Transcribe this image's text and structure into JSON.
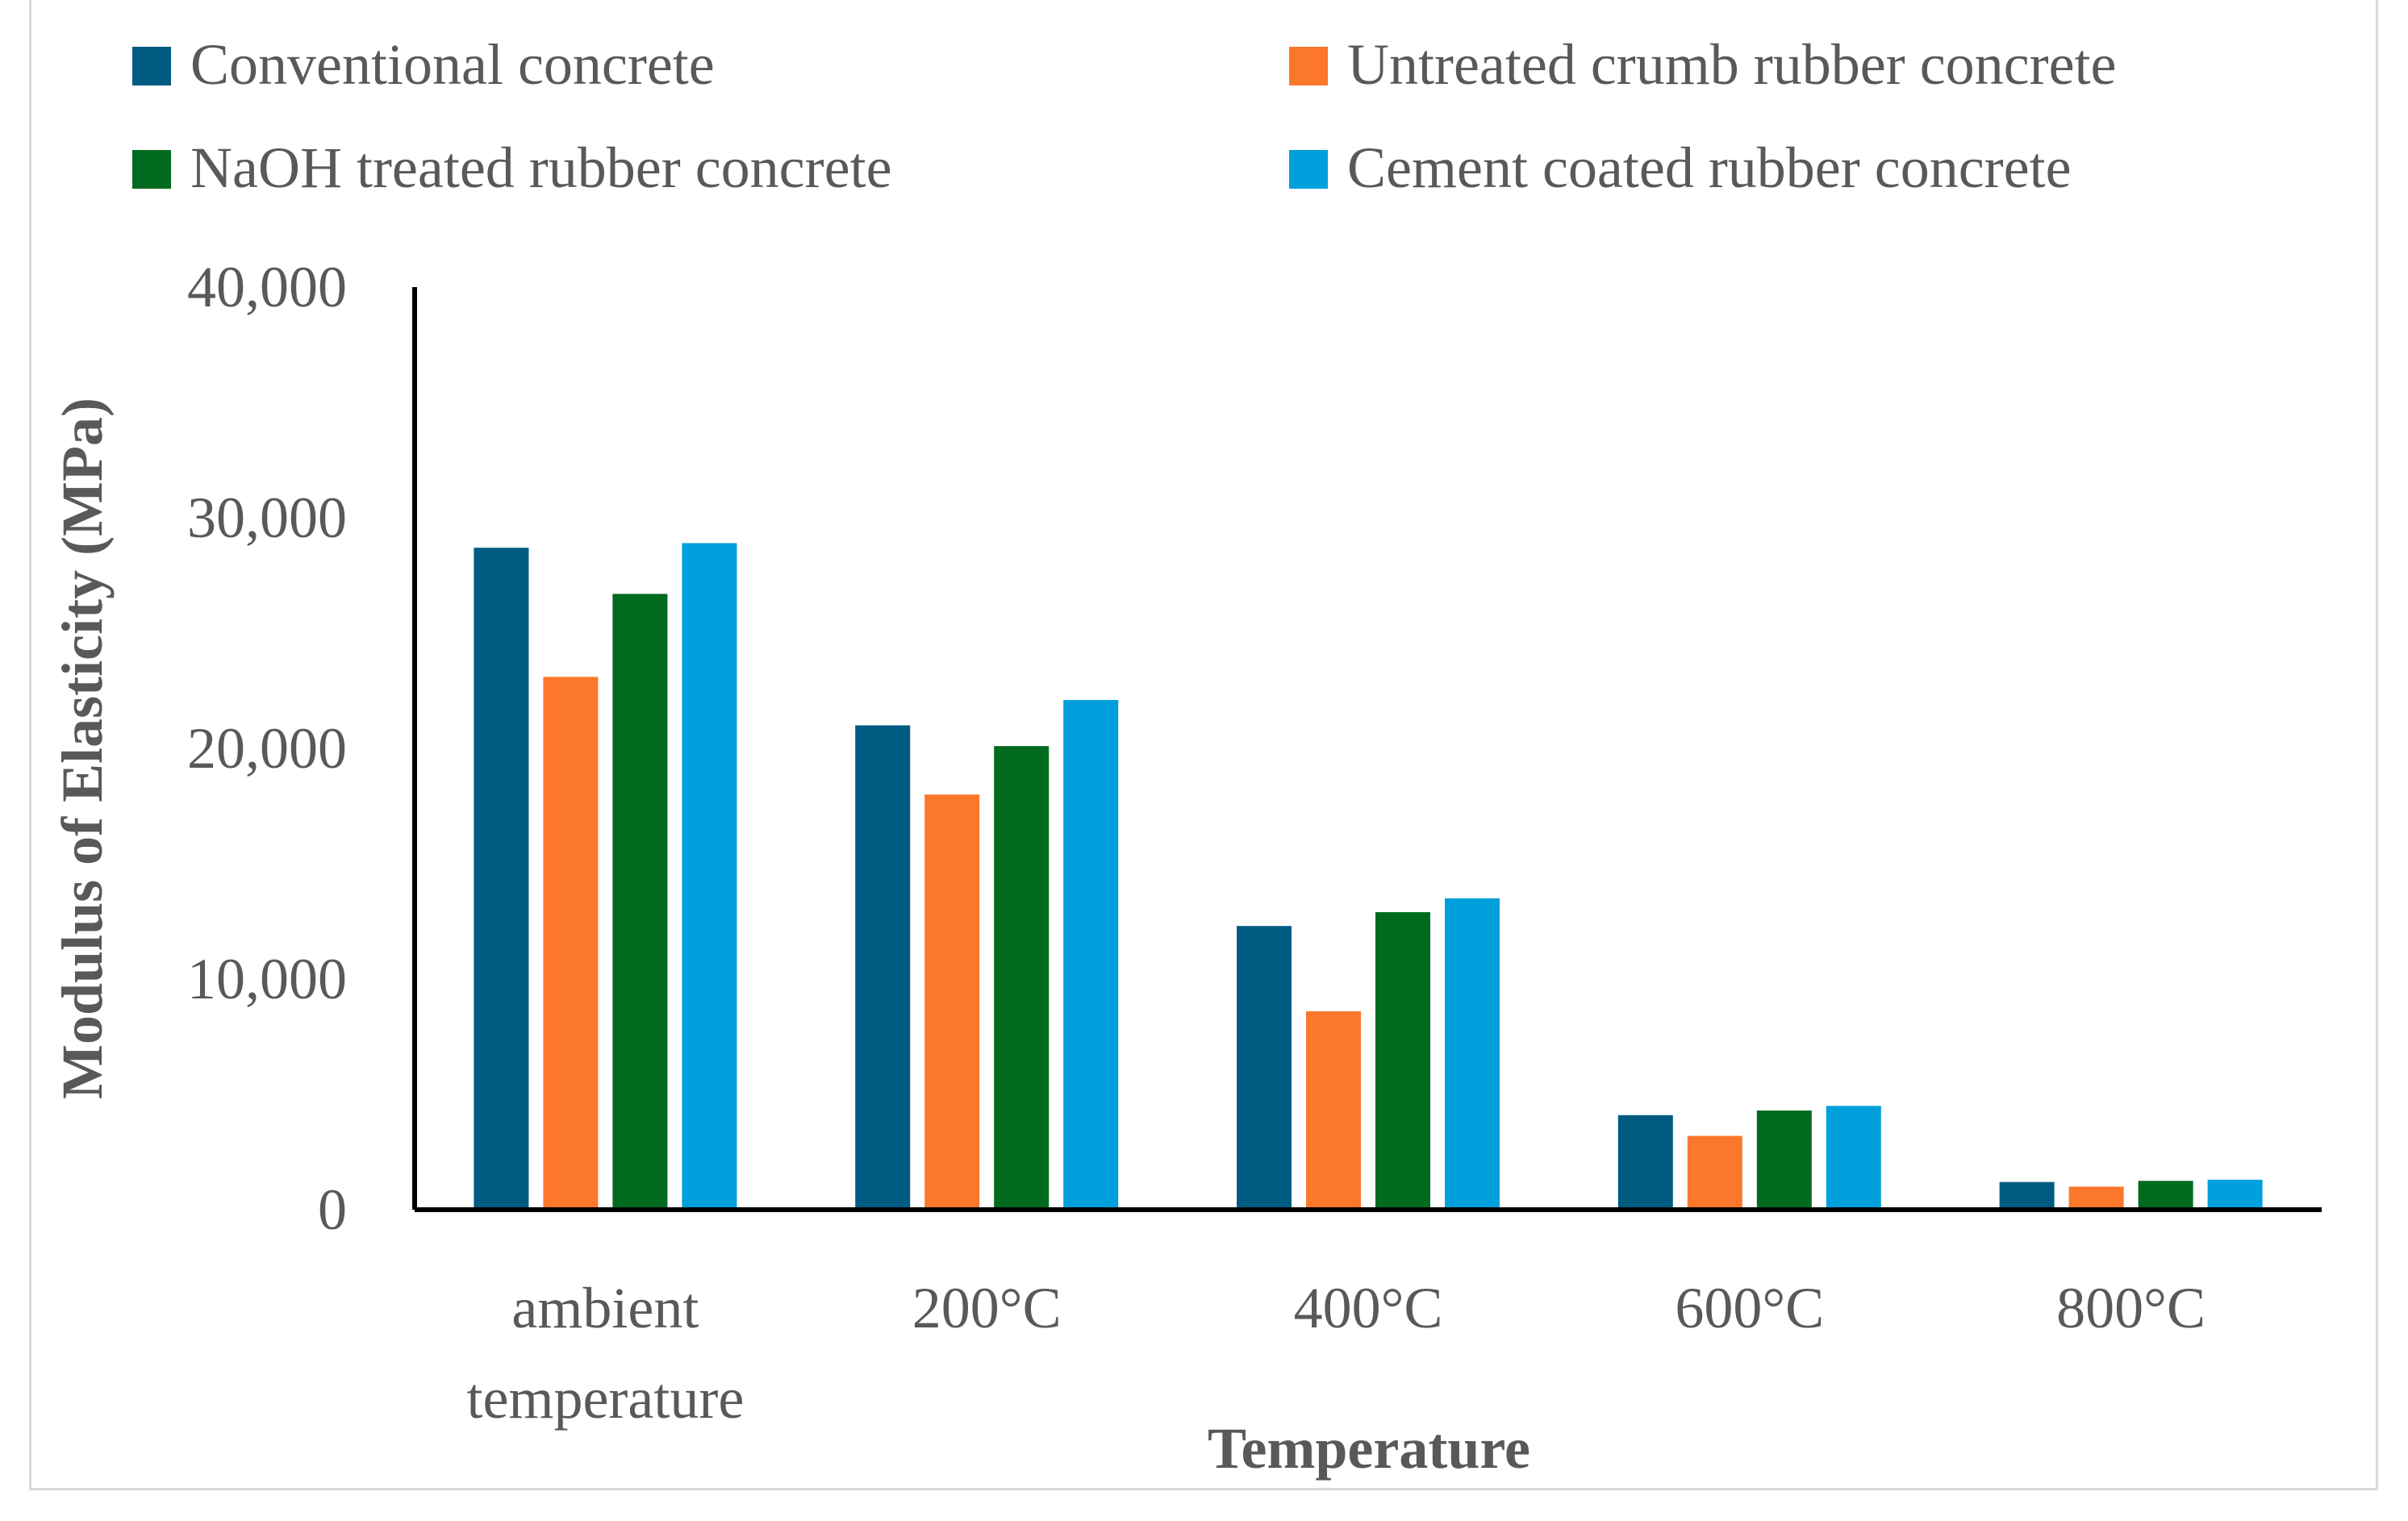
{
  "chart_data": {
    "type": "bar",
    "title": "",
    "xlabel": "Temperature",
    "ylabel": "Modulus of Elasticity (MPa)",
    "ylim": [
      0,
      40000
    ],
    "yticks": [
      {
        "value": 0,
        "label": "0"
      },
      {
        "value": 10000,
        "label": "10,000"
      },
      {
        "value": 20000,
        "label": "20,000"
      },
      {
        "value": 30000,
        "label": "30,000"
      },
      {
        "value": 40000,
        "label": "40,000"
      }
    ],
    "categories": [
      [
        "ambient",
        "temperature"
      ],
      [
        "200°C"
      ],
      [
        "400°C"
      ],
      [
        "600°C"
      ],
      [
        "800°C"
      ]
    ],
    "legend_position": "top",
    "grid": false,
    "series": [
      {
        "name": "Conventional concrete",
        "color": "#005b82",
        "values": [
          28700,
          21000,
          12300,
          4100,
          1200
        ]
      },
      {
        "name": "Untreated crumb rubber concrete",
        "color": "#fb772b",
        "values": [
          23100,
          18000,
          8600,
          3200,
          1000
        ]
      },
      {
        "name": "NaOH treated rubber concrete",
        "color": "#006b1e",
        "values": [
          26700,
          20100,
          12900,
          4300,
          1250
        ]
      },
      {
        "name": "Cement coated rubber concrete",
        "color": "#00a0dc",
        "values": [
          28900,
          22100,
          13500,
          4500,
          1300
        ]
      }
    ]
  }
}
